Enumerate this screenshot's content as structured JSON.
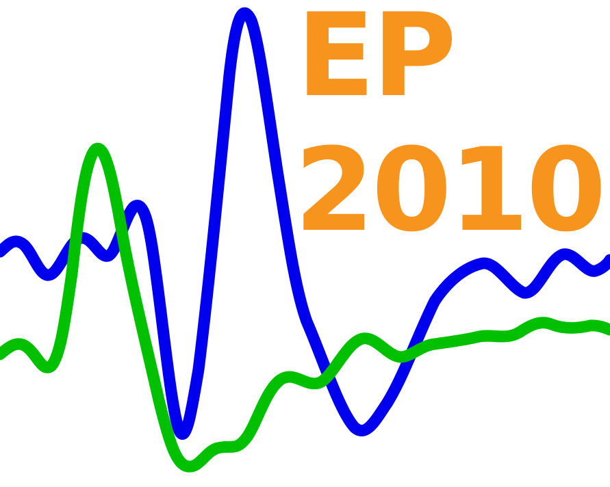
{
  "logo": {
    "line1": "EP",
    "line2": "2010",
    "text_color": "#f7941d",
    "wave_primary_color": "#0000ee",
    "wave_secondary_color": "#00c000"
  }
}
